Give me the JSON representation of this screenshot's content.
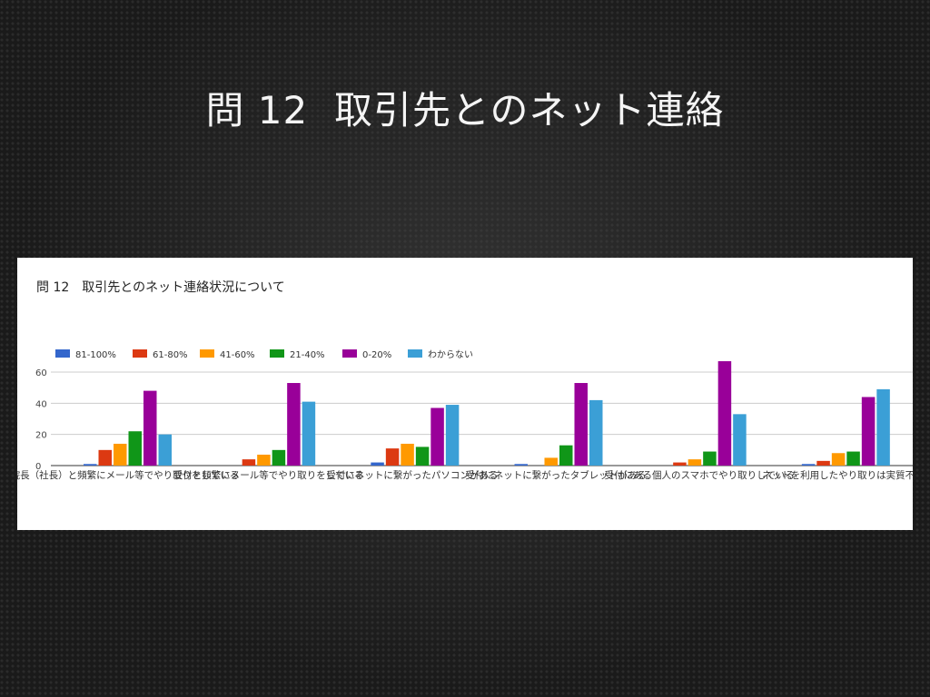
{
  "slide": {
    "title": "問 12  取引先とのネット連絡"
  },
  "chart_data": {
    "type": "bar",
    "title": "問 12　取引先とのネット連絡状況について",
    "xlabel": "",
    "ylabel": "",
    "ylim": [
      0,
      70
    ],
    "yticks": [
      0,
      20,
      40,
      60
    ],
    "grid": true,
    "legend_position": "top-left",
    "categories": [
      "院長（社長）と頻繁にメール等でやり取りをしている",
      "受付と頻繁にメール等でやり取りをしている",
      "受付にネットに繋がったパソコンがある",
      "受付にネットに繋がったタブレットがある",
      "受付にある個人のスマホでやり取りしている",
      "ネットを利用したやり取りは実質不可"
    ],
    "series": [
      {
        "name": "81-100%",
        "color": "#3366cc",
        "values": [
          1,
          0,
          2,
          1,
          0,
          1
        ]
      },
      {
        "name": "61-80%",
        "color": "#dc3912",
        "values": [
          10,
          4,
          11,
          0,
          2,
          3
        ]
      },
      {
        "name": "41-60%",
        "color": "#ff9900",
        "values": [
          14,
          7,
          14,
          5,
          4,
          8
        ]
      },
      {
        "name": "21-40%",
        "color": "#109618",
        "values": [
          22,
          10,
          12,
          13,
          9,
          9
        ]
      },
      {
        "name": "0-20%",
        "color": "#990099",
        "values": [
          48,
          53,
          37,
          53,
          67,
          44
        ]
      },
      {
        "name": "わからない",
        "color": "#3b9fd6",
        "values": [
          20,
          41,
          39,
          42,
          33,
          49
        ]
      }
    ]
  }
}
